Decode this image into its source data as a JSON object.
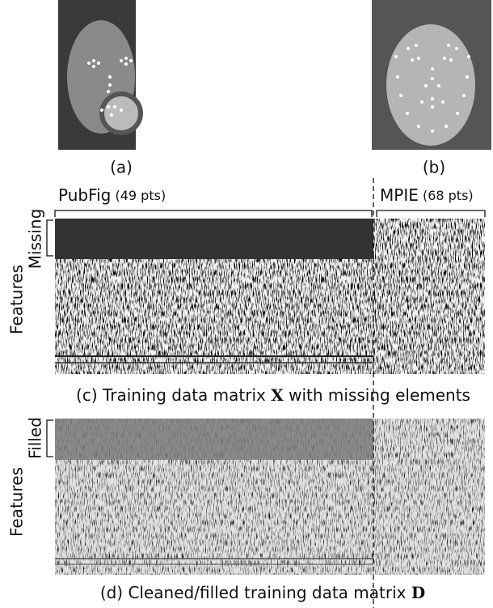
{
  "panels": {
    "a": {
      "label": "(a)"
    },
    "b": {
      "label": "(b)"
    }
  },
  "groups": [
    {
      "name": "PubFig",
      "points": "(49 pts)"
    },
    {
      "name": "MPIE",
      "points": "(68 pts)"
    }
  ],
  "matrix_c": {
    "row_label": "Missing",
    "axis_label": "Features",
    "caption": {
      "prefix": "(c) Training data matrix",
      "symbol": "X",
      "suffix": "with missing elements"
    }
  },
  "matrix_d": {
    "row_label": "Filled",
    "axis_label": "Features",
    "caption": {
      "prefix": "(d) Cleaned/filled training data matrix",
      "symbol": "D"
    }
  }
}
